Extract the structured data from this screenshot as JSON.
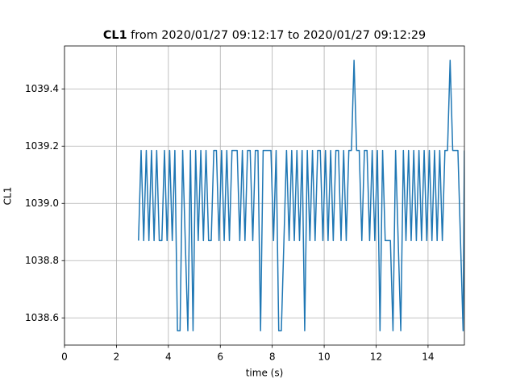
{
  "chart_data": {
    "type": "line",
    "title": {
      "bold": "CL1",
      "text": "from 2020/01/27 09:12:17 to 2020/01/27 09:12:29"
    },
    "x_label": "time (s)",
    "y_label": "CL1",
    "color": "#1f77b4",
    "grid": true,
    "xlim": [
      0,
      15.4
    ],
    "ylim": [
      1038.505,
      1039.55
    ],
    "xticks": [
      0,
      2,
      4,
      6,
      8,
      10,
      12,
      14
    ],
    "yticks": [
      1038.6,
      1038.8,
      {
        "value": 1039,
        "label": "1039.0"
      },
      1039.2,
      1039.4
    ],
    "x": [
      2.85,
      2.95,
      3.05,
      3.15,
      3.25,
      3.35,
      3.45,
      3.55,
      3.65,
      3.75,
      3.85,
      3.95,
      4.05,
      4.15,
      4.25,
      4.35,
      4.45,
      4.55,
      4.65,
      4.75,
      4.85,
      4.95,
      5.05,
      5.15,
      5.25,
      5.35,
      5.45,
      5.55,
      5.65,
      5.75,
      5.85,
      5.95,
      6.05,
      6.15,
      6.25,
      6.35,
      6.45,
      6.55,
      6.65,
      6.75,
      6.85,
      6.95,
      7.05,
      7.15,
      7.25,
      7.35,
      7.45,
      7.55,
      7.65,
      7.75,
      7.85,
      7.95,
      8.05,
      8.15,
      8.25,
      8.35,
      8.45,
      8.55,
      8.65,
      8.75,
      8.85,
      8.95,
      9.05,
      9.15,
      9.25,
      9.35,
      9.45,
      9.55,
      9.65,
      9.75,
      9.85,
      9.95,
      10.05,
      10.15,
      10.25,
      10.35,
      10.45,
      10.55,
      10.65,
      10.75,
      10.85,
      10.95,
      11.05,
      11.15,
      11.25,
      11.35,
      11.45,
      11.55,
      11.65,
      11.75,
      11.85,
      11.95,
      12.05,
      12.15,
      12.25,
      12.35,
      12.45,
      12.55,
      12.65,
      12.75,
      12.85,
      12.95,
      13.05,
      13.15,
      13.25,
      13.35,
      13.45,
      13.55,
      13.65,
      13.75,
      13.85,
      13.95,
      14.05,
      14.15,
      14.25,
      14.35,
      14.45,
      14.55,
      14.65,
      14.75,
      14.85,
      14.95,
      15.05,
      15.15,
      15.25,
      15.35,
      15.4
    ],
    "values": [
      1038.87,
      1039.185,
      1038.87,
      1039.185,
      1038.87,
      1039.185,
      1038.87,
      1039.185,
      1038.87,
      1038.87,
      1039.185,
      1038.87,
      1039.185,
      1038.87,
      1039.185,
      1038.555,
      1038.555,
      1039.185,
      1038.87,
      1038.555,
      1039.185,
      1038.555,
      1039.185,
      1038.87,
      1039.185,
      1038.87,
      1039.185,
      1038.87,
      1038.87,
      1039.185,
      1039.185,
      1038.87,
      1039.185,
      1038.87,
      1039.185,
      1038.87,
      1039.185,
      1039.185,
      1039.185,
      1038.87,
      1039.185,
      1038.87,
      1039.185,
      1039.185,
      1038.87,
      1039.185,
      1039.185,
      1038.555,
      1039.185,
      1039.185,
      1039.185,
      1039.185,
      1038.87,
      1039.185,
      1038.555,
      1038.555,
      1038.87,
      1039.185,
      1038.87,
      1039.185,
      1038.87,
      1039.185,
      1038.87,
      1039.185,
      1038.555,
      1039.185,
      1038.87,
      1039.185,
      1038.87,
      1039.185,
      1039.185,
      1038.87,
      1039.185,
      1038.87,
      1039.185,
      1038.87,
      1039.185,
      1039.185,
      1038.87,
      1039.185,
      1038.87,
      1039.185,
      1039.185,
      1039.5,
      1039.185,
      1039.185,
      1038.87,
      1039.185,
      1039.185,
      1038.87,
      1039.185,
      1038.87,
      1039.185,
      1038.555,
      1039.185,
      1038.87,
      1038.87,
      1038.87,
      1038.555,
      1039.185,
      1038.87,
      1038.555,
      1039.185,
      1038.87,
      1039.185,
      1038.87,
      1039.185,
      1038.87,
      1039.185,
      1038.87,
      1039.185,
      1038.87,
      1039.185,
      1038.87,
      1039.185,
      1038.87,
      1039.185,
      1038.87,
      1039.185,
      1039.185,
      1039.5,
      1039.185,
      1039.185,
      1039.185,
      1038.87,
      1038.555,
      1039.185
    ]
  }
}
